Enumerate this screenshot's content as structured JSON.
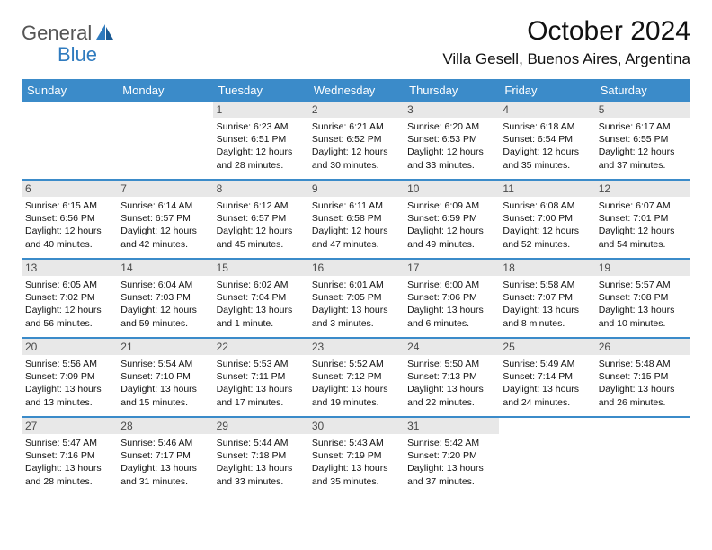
{
  "brand": {
    "text1": "General",
    "text2": "Blue"
  },
  "header": {
    "title": "October 2024",
    "location": "Villa Gesell, Buenos Aires, Argentina"
  },
  "colors": {
    "header_bg": "#3b8bc9",
    "header_text": "#ffffff",
    "daynum_bg": "#e8e8e8",
    "daynum_text": "#4a4a4a",
    "border": "#3b8bc9",
    "brand_gray": "#555555",
    "brand_blue": "#2f7bbf",
    "body_text": "#111111",
    "page_bg": "#ffffff"
  },
  "weekdays": [
    "Sunday",
    "Monday",
    "Tuesday",
    "Wednesday",
    "Thursday",
    "Friday",
    "Saturday"
  ],
  "weeks": [
    [
      null,
      null,
      {
        "n": "1",
        "sr": "6:23 AM",
        "ss": "6:51 PM",
        "dl": "12 hours and 28 minutes."
      },
      {
        "n": "2",
        "sr": "6:21 AM",
        "ss": "6:52 PM",
        "dl": "12 hours and 30 minutes."
      },
      {
        "n": "3",
        "sr": "6:20 AM",
        "ss": "6:53 PM",
        "dl": "12 hours and 33 minutes."
      },
      {
        "n": "4",
        "sr": "6:18 AM",
        "ss": "6:54 PM",
        "dl": "12 hours and 35 minutes."
      },
      {
        "n": "5",
        "sr": "6:17 AM",
        "ss": "6:55 PM",
        "dl": "12 hours and 37 minutes."
      }
    ],
    [
      {
        "n": "6",
        "sr": "6:15 AM",
        "ss": "6:56 PM",
        "dl": "12 hours and 40 minutes."
      },
      {
        "n": "7",
        "sr": "6:14 AM",
        "ss": "6:57 PM",
        "dl": "12 hours and 42 minutes."
      },
      {
        "n": "8",
        "sr": "6:12 AM",
        "ss": "6:57 PM",
        "dl": "12 hours and 45 minutes."
      },
      {
        "n": "9",
        "sr": "6:11 AM",
        "ss": "6:58 PM",
        "dl": "12 hours and 47 minutes."
      },
      {
        "n": "10",
        "sr": "6:09 AM",
        "ss": "6:59 PM",
        "dl": "12 hours and 49 minutes."
      },
      {
        "n": "11",
        "sr": "6:08 AM",
        "ss": "7:00 PM",
        "dl": "12 hours and 52 minutes."
      },
      {
        "n": "12",
        "sr": "6:07 AM",
        "ss": "7:01 PM",
        "dl": "12 hours and 54 minutes."
      }
    ],
    [
      {
        "n": "13",
        "sr": "6:05 AM",
        "ss": "7:02 PM",
        "dl": "12 hours and 56 minutes."
      },
      {
        "n": "14",
        "sr": "6:04 AM",
        "ss": "7:03 PM",
        "dl": "12 hours and 59 minutes."
      },
      {
        "n": "15",
        "sr": "6:02 AM",
        "ss": "7:04 PM",
        "dl": "13 hours and 1 minute."
      },
      {
        "n": "16",
        "sr": "6:01 AM",
        "ss": "7:05 PM",
        "dl": "13 hours and 3 minutes."
      },
      {
        "n": "17",
        "sr": "6:00 AM",
        "ss": "7:06 PM",
        "dl": "13 hours and 6 minutes."
      },
      {
        "n": "18",
        "sr": "5:58 AM",
        "ss": "7:07 PM",
        "dl": "13 hours and 8 minutes."
      },
      {
        "n": "19",
        "sr": "5:57 AM",
        "ss": "7:08 PM",
        "dl": "13 hours and 10 minutes."
      }
    ],
    [
      {
        "n": "20",
        "sr": "5:56 AM",
        "ss": "7:09 PM",
        "dl": "13 hours and 13 minutes."
      },
      {
        "n": "21",
        "sr": "5:54 AM",
        "ss": "7:10 PM",
        "dl": "13 hours and 15 minutes."
      },
      {
        "n": "22",
        "sr": "5:53 AM",
        "ss": "7:11 PM",
        "dl": "13 hours and 17 minutes."
      },
      {
        "n": "23",
        "sr": "5:52 AM",
        "ss": "7:12 PM",
        "dl": "13 hours and 19 minutes."
      },
      {
        "n": "24",
        "sr": "5:50 AM",
        "ss": "7:13 PM",
        "dl": "13 hours and 22 minutes."
      },
      {
        "n": "25",
        "sr": "5:49 AM",
        "ss": "7:14 PM",
        "dl": "13 hours and 24 minutes."
      },
      {
        "n": "26",
        "sr": "5:48 AM",
        "ss": "7:15 PM",
        "dl": "13 hours and 26 minutes."
      }
    ],
    [
      {
        "n": "27",
        "sr": "5:47 AM",
        "ss": "7:16 PM",
        "dl": "13 hours and 28 minutes."
      },
      {
        "n": "28",
        "sr": "5:46 AM",
        "ss": "7:17 PM",
        "dl": "13 hours and 31 minutes."
      },
      {
        "n": "29",
        "sr": "5:44 AM",
        "ss": "7:18 PM",
        "dl": "13 hours and 33 minutes."
      },
      {
        "n": "30",
        "sr": "5:43 AM",
        "ss": "7:19 PM",
        "dl": "13 hours and 35 minutes."
      },
      {
        "n": "31",
        "sr": "5:42 AM",
        "ss": "7:20 PM",
        "dl": "13 hours and 37 minutes."
      },
      null,
      null
    ]
  ],
  "labels": {
    "sunrise": "Sunrise: ",
    "sunset": "Sunset: ",
    "daylight": "Daylight: "
  }
}
